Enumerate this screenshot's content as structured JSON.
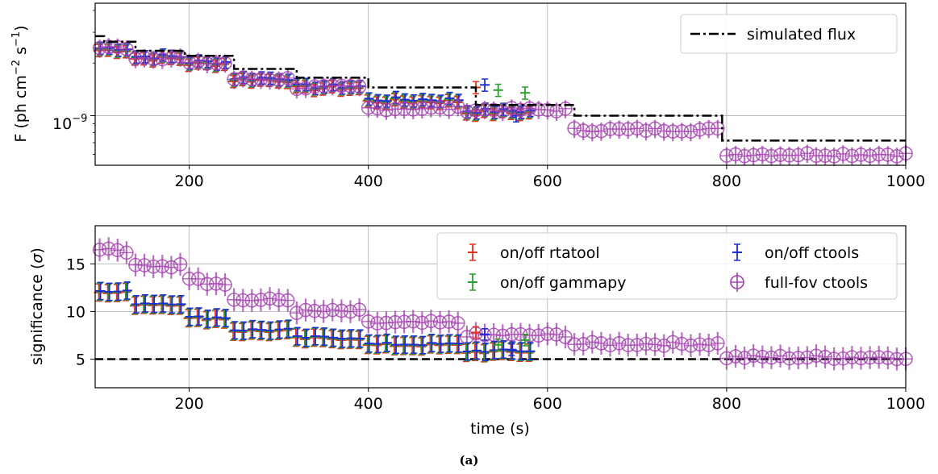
{
  "caption": "(a)",
  "chart_data": [
    {
      "type": "line",
      "panel": "top",
      "ylabel_parts": [
        "F (ph cm",
        "−2",
        " s",
        "−1",
        ")"
      ],
      "xlim": [
        95,
        1000
      ],
      "ylim_log": [
        5.2e-10,
        4.4e-09
      ],
      "yscale": "log",
      "grid": true,
      "legend_position": "top-right",
      "x_ticks": [
        200,
        400,
        600,
        800,
        1000
      ],
      "y_tick": {
        "value": 1e-09,
        "base": "10",
        "exponent": "−9"
      },
      "series": [
        {
          "name": "simulated flux",
          "style": "dashdot",
          "color": "#000000",
          "steps": [
            [
              95,
              2.85e-09
            ],
            [
              105,
              2.65e-09
            ],
            [
              140,
              2.35e-09
            ],
            [
              195,
              2.2e-09
            ],
            [
              250,
              1.85e-09
            ],
            [
              320,
              1.65e-09
            ],
            [
              400,
              1.45e-09
            ],
            [
              520,
              1.15e-09
            ],
            [
              630,
              1e-09
            ],
            [
              795,
              7.2e-10
            ],
            [
              1000,
              7.2e-10
            ]
          ]
        }
      ],
      "markers": {
        "full_fov": {
          "segments": [
            [
              95,
              2.45e-09
            ],
            [
              140,
              2.15e-09
            ],
            [
              195,
              2e-09
            ],
            [
              250,
              1.62e-09
            ],
            [
              320,
              1.45e-09
            ],
            [
              400,
              1.1e-09
            ],
            [
              505,
              1.08e-09
            ],
            [
              630,
              8.3e-10
            ],
            [
              795,
              6e-10
            ],
            [
              1000,
              6e-10
            ]
          ],
          "err_frac": 0.12
        },
        "onoff": {
          "segments": [
            [
              95,
              2.4e-09
            ],
            [
              140,
              2.15e-09
            ],
            [
              195,
              2e-09
            ],
            [
              250,
              1.62e-09
            ],
            [
              320,
              1.45e-09
            ],
            [
              400,
              1.22e-09
            ],
            [
              510,
              1.05e-09
            ],
            [
              580,
              1.05e-09
            ]
          ],
          "outliers": [
            [
              520,
              1.45e-09
            ],
            [
              530,
              1.5e-09
            ],
            [
              545,
              1.4e-09
            ],
            [
              565,
              1e-09
            ],
            [
              575,
              1.35e-09
            ]
          ],
          "err_frac": 0.08
        }
      }
    },
    {
      "type": "line",
      "panel": "bottom",
      "xlabel": "time (s)",
      "ylabel_text": "significance (",
      "ylabel_sigma": "σ",
      "ylabel_close": ")",
      "xlim": [
        95,
        1000
      ],
      "ylim": [
        2,
        19
      ],
      "grid": true,
      "legend_position": "top-right",
      "x_ticks": [
        200,
        400,
        600,
        800,
        1000
      ],
      "y_ticks": [
        5,
        10,
        15
      ],
      "threshold": 5,
      "legend": [
        {
          "label": "on/off rtatool",
          "color": "#e8301e",
          "marker": "plus"
        },
        {
          "label": "on/off gammapy",
          "color": "#2ca02c",
          "marker": "plus"
        },
        {
          "label": "on/off ctools",
          "color": "#1f2bd6",
          "marker": "plus"
        },
        {
          "label": "full-fov ctools",
          "color": "#a23fae",
          "marker": "circle"
        }
      ],
      "series": [
        {
          "name": "full-fov ctools",
          "segments": [
            [
              95,
              16.5
            ],
            [
              125,
              16.0
            ],
            [
              140,
              14.8
            ],
            [
              195,
              13.6
            ],
            [
              215,
              13.0
            ],
            [
              250,
              11.2
            ],
            [
              320,
              10.0
            ],
            [
              400,
              8.8
            ],
            [
              505,
              7.5
            ],
            [
              630,
              6.6
            ],
            [
              795,
              5.2
            ],
            [
              1000,
              5.2
            ]
          ],
          "err": 1.2
        },
        {
          "name": "on/off",
          "segments": [
            [
              95,
              12.0
            ],
            [
              140,
              10.8
            ],
            [
              195,
              9.3
            ],
            [
              250,
              8.0
            ],
            [
              320,
              7.2
            ],
            [
              400,
              6.5
            ],
            [
              505,
              5.8
            ],
            [
              580,
              5.8
            ]
          ],
          "outliers": [
            [
              520,
              7.8
            ],
            [
              530,
              7.6
            ],
            [
              545,
              6.5
            ],
            [
              560,
              6.0
            ],
            [
              575,
              7.0
            ]
          ],
          "err": 0.9
        }
      ]
    }
  ]
}
